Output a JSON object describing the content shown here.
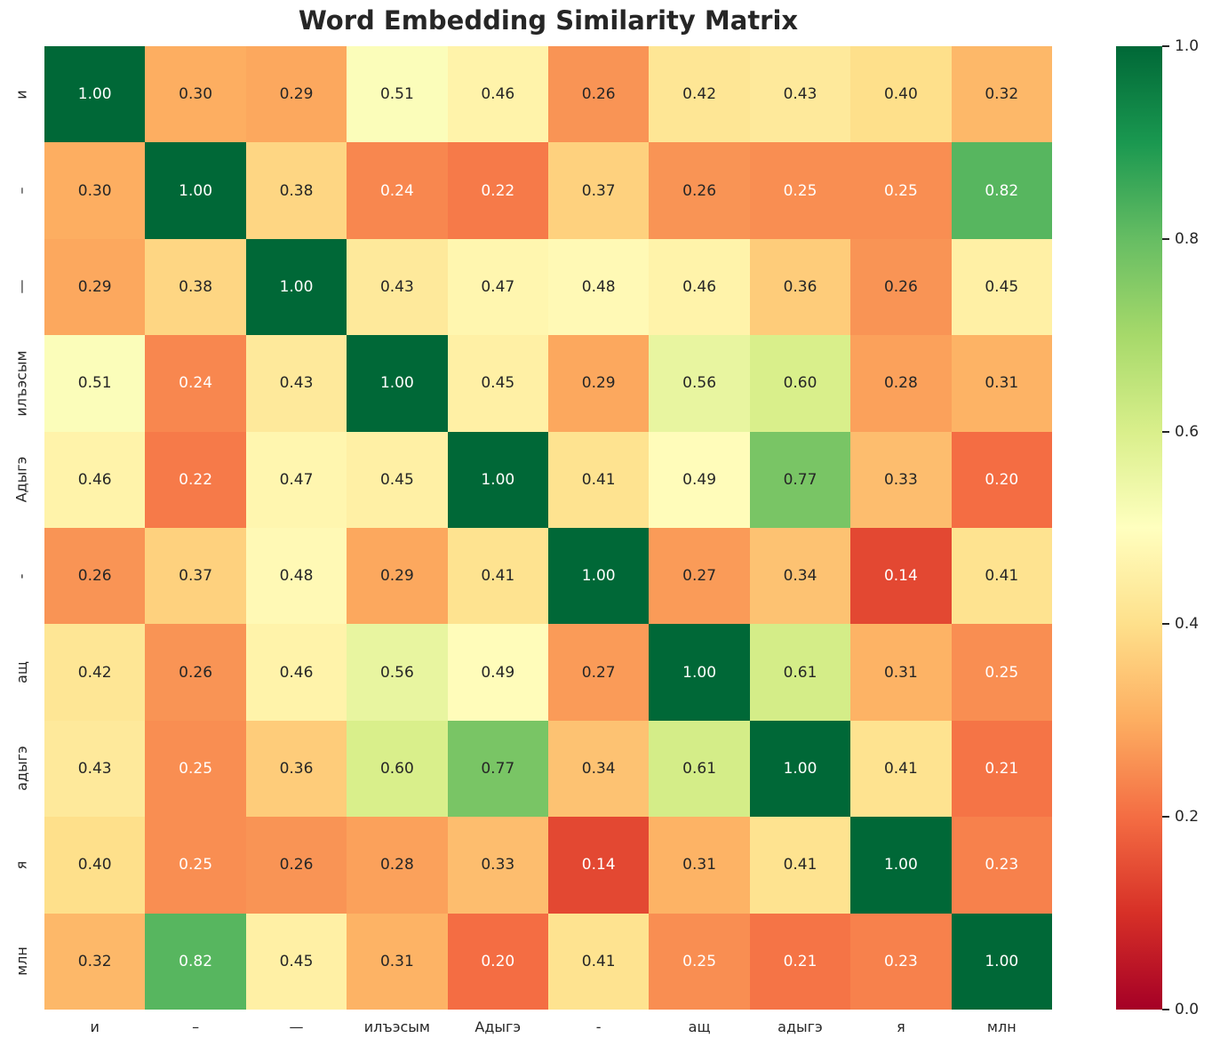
{
  "title": "Word Embedding Similarity Matrix",
  "chart_data": {
    "type": "heatmap",
    "title": "Word Embedding Similarity Matrix",
    "x_labels": [
      "и",
      "–",
      "—",
      "илъэсым",
      "Адыгэ",
      "-",
      "ащ",
      "адыгэ",
      "я",
      "млн"
    ],
    "y_labels": [
      "и",
      "–",
      "—",
      "илъэсым",
      "Адыгэ",
      "-",
      "ащ",
      "адыгэ",
      "я",
      "млн"
    ],
    "matrix": [
      [
        1.0,
        0.3,
        0.29,
        0.51,
        0.46,
        0.26,
        0.42,
        0.43,
        0.4,
        0.32
      ],
      [
        0.3,
        1.0,
        0.38,
        0.24,
        0.22,
        0.37,
        0.26,
        0.25,
        0.25,
        0.82
      ],
      [
        0.29,
        0.38,
        1.0,
        0.43,
        0.47,
        0.48,
        0.46,
        0.36,
        0.26,
        0.45
      ],
      [
        0.51,
        0.24,
        0.43,
        1.0,
        0.45,
        0.29,
        0.56,
        0.6,
        0.28,
        0.31
      ],
      [
        0.46,
        0.22,
        0.47,
        0.45,
        1.0,
        0.41,
        0.49,
        0.77,
        0.33,
        0.2
      ],
      [
        0.26,
        0.37,
        0.48,
        0.29,
        0.41,
        1.0,
        0.27,
        0.34,
        0.14,
        0.41
      ],
      [
        0.42,
        0.26,
        0.46,
        0.56,
        0.49,
        0.27,
        1.0,
        0.61,
        0.31,
        0.25
      ],
      [
        0.43,
        0.25,
        0.36,
        0.6,
        0.77,
        0.34,
        0.61,
        1.0,
        0.41,
        0.21
      ],
      [
        0.4,
        0.25,
        0.26,
        0.28,
        0.33,
        0.14,
        0.31,
        0.41,
        1.0,
        0.23
      ],
      [
        0.32,
        0.82,
        0.45,
        0.31,
        0.2,
        0.41,
        0.25,
        0.21,
        0.23,
        1.0
      ]
    ],
    "vmin": 0.0,
    "vmax": 1.0,
    "value_decimals": 2,
    "grid": false,
    "colormap": {
      "name": "RdYlGn",
      "stops": [
        "#a50026",
        "#d73027",
        "#f46d43",
        "#fdae61",
        "#fee08b",
        "#ffffbf",
        "#d9ef8b",
        "#a6d96a",
        "#66bd63",
        "#1a9850",
        "#006837"
      ]
    },
    "colorbar": {
      "position": "right",
      "tick_labels": [
        "1.0",
        "0.8",
        "0.6",
        "0.4",
        "0.2",
        "0.0"
      ]
    },
    "annotation_colors": {
      "dark_text": "#262626",
      "light_text": "#ffffff",
      "luminance_threshold": 0.408
    }
  }
}
